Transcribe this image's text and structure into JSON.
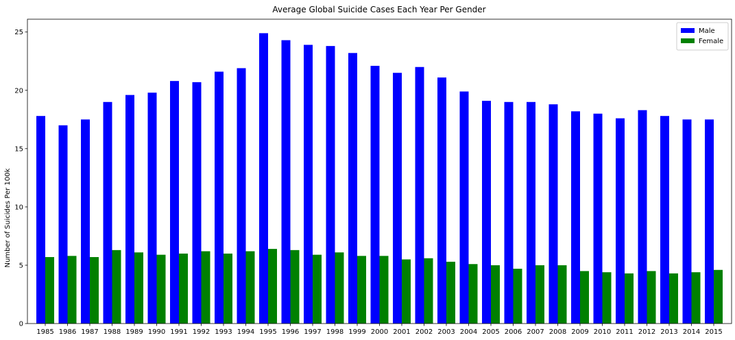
{
  "chart_data": {
    "type": "bar",
    "title": "Average Global Suicide Cases Each Year Per Gender",
    "xlabel": "",
    "ylabel": "Number of Suicides Per 100k",
    "ylim": [
      0,
      26.1
    ],
    "yticks": [
      0,
      5,
      10,
      15,
      20,
      25
    ],
    "grid": false,
    "legend_position": "top-right",
    "categories": [
      "1985",
      "1986",
      "1987",
      "1988",
      "1989",
      "1990",
      "1991",
      "1992",
      "1993",
      "1994",
      "1995",
      "1996",
      "1997",
      "1998",
      "1999",
      "2000",
      "2001",
      "2002",
      "2003",
      "2004",
      "2005",
      "2006",
      "2007",
      "2008",
      "2009",
      "2010",
      "2011",
      "2012",
      "2013",
      "2014",
      "2015"
    ],
    "series": [
      {
        "name": "Male",
        "color": "#0000ff",
        "values": [
          17.8,
          17.0,
          17.5,
          19.0,
          19.6,
          19.8,
          20.8,
          20.7,
          21.6,
          21.9,
          24.9,
          24.3,
          23.9,
          23.8,
          23.2,
          22.1,
          21.5,
          22.0,
          21.1,
          19.9,
          19.1,
          19.0,
          19.0,
          18.8,
          18.2,
          18.0,
          17.6,
          18.3,
          17.8,
          17.5,
          17.5
        ]
      },
      {
        "name": "Female",
        "color": "#008000",
        "values": [
          5.7,
          5.8,
          5.7,
          6.3,
          6.1,
          5.9,
          6.0,
          6.2,
          6.0,
          6.2,
          6.4,
          6.3,
          5.9,
          6.1,
          5.8,
          5.8,
          5.5,
          5.6,
          5.3,
          5.1,
          5.0,
          4.7,
          5.0,
          5.0,
          4.5,
          4.4,
          4.3,
          4.5,
          4.3,
          4.4,
          4.6
        ]
      }
    ]
  }
}
